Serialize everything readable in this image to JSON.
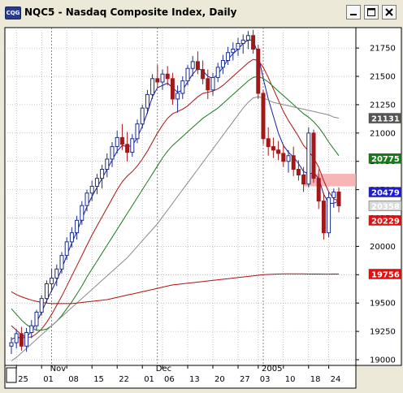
{
  "window": {
    "icon_text": "CQG",
    "title": "NQC5 - Nasdaq Composite Index, Daily"
  },
  "chart_data": {
    "type": "candlestick",
    "symbol": "NQC5",
    "title": "Nasdaq Composite Index, Daily",
    "ylim": [
      18950,
      21930
    ],
    "y_ticks": [
      19000,
      19250,
      19500,
      19750,
      20000,
      20250,
      20500,
      20750,
      21000,
      21250,
      21500,
      21750
    ],
    "x_ticks": [
      {
        "label": "25",
        "bar": 1
      },
      {
        "label": "01",
        "bar": 6
      },
      {
        "label": "08",
        "bar": 11
      },
      {
        "label": "15",
        "bar": 16
      },
      {
        "label": "22",
        "bar": 21
      },
      {
        "label": "01",
        "bar": 26
      },
      {
        "label": "06",
        "bar": 30
      },
      {
        "label": "13",
        "bar": 35
      },
      {
        "label": "20",
        "bar": 40
      },
      {
        "label": "27",
        "bar": 45
      },
      {
        "label": "03",
        "bar": 49
      },
      {
        "label": "10",
        "bar": 54
      },
      {
        "label": "18",
        "bar": 59
      },
      {
        "label": "24",
        "bar": 63
      }
    ],
    "period_labels": [
      {
        "label": "Nov",
        "bar": 8
      },
      {
        "label": "Dec",
        "bar": 29
      },
      {
        "label": "2005",
        "bar": 50
      }
    ],
    "bar_spacing_units": 1,
    "candles": [
      [
        19120,
        19200,
        19050,
        19150
      ],
      [
        19150,
        19270,
        19100,
        19230
      ],
      [
        19230,
        19290,
        19080,
        19120
      ],
      [
        19120,
        19280,
        19070,
        19240
      ],
      [
        19240,
        19350,
        19190,
        19300
      ],
      [
        19300,
        19440,
        19260,
        19420
      ],
      [
        19420,
        19570,
        19390,
        19540
      ],
      [
        19540,
        19700,
        19500,
        19670
      ],
      [
        19670,
        19800,
        19610,
        19720
      ],
      [
        19720,
        19840,
        19650,
        19800
      ],
      [
        19800,
        19950,
        19760,
        19920
      ],
      [
        19920,
        20080,
        19880,
        20040
      ],
      [
        20040,
        20170,
        19990,
        20120
      ],
      [
        20120,
        20270,
        20060,
        20230
      ],
      [
        20230,
        20400,
        20190,
        20360
      ],
      [
        20360,
        20500,
        20310,
        20470
      ],
      [
        20470,
        20580,
        20400,
        20530
      ],
      [
        20530,
        20640,
        20460,
        20600
      ],
      [
        20600,
        20720,
        20510,
        20680
      ],
      [
        20680,
        20820,
        20610,
        20770
      ],
      [
        20770,
        20920,
        20700,
        20880
      ],
      [
        20880,
        21020,
        20820,
        20960
      ],
      [
        20960,
        21080,
        20850,
        20900
      ],
      [
        20900,
        21010,
        20750,
        20830
      ],
      [
        20830,
        20990,
        20790,
        20950
      ],
      [
        20950,
        21120,
        20910,
        21080
      ],
      [
        21080,
        21250,
        21040,
        21220
      ],
      [
        21220,
        21380,
        21170,
        21340
      ],
      [
        21340,
        21520,
        21300,
        21480
      ],
      [
        21480,
        21600,
        21400,
        21450
      ],
      [
        21450,
        21560,
        21380,
        21520
      ],
      [
        21520,
        21590,
        21420,
        21480
      ],
      [
        21480,
        21530,
        21250,
        21300
      ],
      [
        21300,
        21420,
        21180,
        21350
      ],
      [
        21350,
        21500,
        21300,
        21460
      ],
      [
        21460,
        21600,
        21420,
        21570
      ],
      [
        21570,
        21680,
        21500,
        21630
      ],
      [
        21630,
        21720,
        21520,
        21560
      ],
      [
        21560,
        21640,
        21430,
        21480
      ],
      [
        21480,
        21560,
        21300,
        21380
      ],
      [
        21380,
        21530,
        21330,
        21490
      ],
      [
        21490,
        21620,
        21450,
        21580
      ],
      [
        21580,
        21690,
        21520,
        21640
      ],
      [
        21640,
        21760,
        21600,
        21710
      ],
      [
        21710,
        21800,
        21640,
        21740
      ],
      [
        21740,
        21840,
        21680,
        21790
      ],
      [
        21790,
        21870,
        21700,
        21820
      ],
      [
        21820,
        21900,
        21740,
        21860
      ],
      [
        21860,
        21910,
        21700,
        21740
      ],
      [
        21740,
        21780,
        21300,
        21350
      ],
      [
        21350,
        21380,
        20900,
        20950
      ],
      [
        20950,
        21050,
        20800,
        20880
      ],
      [
        20880,
        20960,
        20780,
        20850
      ],
      [
        20850,
        20930,
        20760,
        20820
      ],
      [
        20820,
        20900,
        20700,
        20750
      ],
      [
        20750,
        20850,
        20650,
        20800
      ],
      [
        20800,
        20880,
        20620,
        20680
      ],
      [
        20680,
        20760,
        20580,
        20630
      ],
      [
        20630,
        20700,
        20480,
        20550
      ],
      [
        20550,
        21050,
        20520,
        21000
      ],
      [
        21000,
        21030,
        20560,
        20600
      ],
      [
        20600,
        20680,
        20330,
        20400
      ],
      [
        20400,
        20470,
        20060,
        20120
      ],
      [
        20120,
        20480,
        20080,
        20430
      ],
      [
        20430,
        20510,
        20340,
        20480
      ],
      [
        20480,
        20520,
        20300,
        20358
      ]
    ],
    "series": [
      {
        "type": "moving-average",
        "color": "#1a1aaa",
        "values": [
          19180,
          19200,
          19190,
          19200,
          19250,
          19330,
          19420,
          19520,
          19610,
          19700,
          19800,
          19920,
          20030,
          20130,
          20240,
          20350,
          20440,
          20520,
          20600,
          20680,
          20760,
          20840,
          20890,
          20880,
          20890,
          20960,
          21060,
          21180,
          21320,
          21400,
          21420,
          21440,
          21400,
          21360,
          21380,
          21450,
          21520,
          21570,
          21550,
          21500,
          21480,
          21520,
          21580,
          21650,
          21700,
          21740,
          21790,
          21820,
          21820,
          21690,
          21480,
          21300,
          21150,
          21000,
          20890,
          20830,
          20790,
          20730,
          20660,
          20640,
          20650,
          20600,
          20460,
          20380,
          20380,
          20400
        ]
      },
      {
        "type": "moving-average",
        "color": "#b01010",
        "values": [
          19300,
          19260,
          19220,
          19200,
          19200,
          19230,
          19270,
          19330,
          19400,
          19480,
          19560,
          19650,
          19740,
          19830,
          19920,
          20010,
          20100,
          20180,
          20260,
          20340,
          20420,
          20500,
          20570,
          20620,
          20660,
          20710,
          20770,
          20840,
          20920,
          21000,
          21070,
          21130,
          21170,
          21190,
          21210,
          21240,
          21280,
          21320,
          21350,
          21360,
          21370,
          21390,
          21420,
          21460,
          21500,
          21540,
          21580,
          21620,
          21650,
          21640,
          21580,
          21490,
          21390,
          21290,
          21190,
          21110,
          21040,
          20970,
          20890,
          20840,
          20780,
          20700,
          20580,
          20480,
          20420,
          20400
        ]
      },
      {
        "type": "moving-average",
        "color": "#1a7a1a",
        "values": [
          19450,
          19400,
          19350,
          19310,
          19280,
          19260,
          19260,
          19270,
          19300,
          19340,
          19390,
          19450,
          19510,
          19580,
          19650,
          19730,
          19800,
          19870,
          19940,
          20010,
          20080,
          20150,
          20220,
          20290,
          20360,
          20430,
          20500,
          20570,
          20640,
          20710,
          20780,
          20840,
          20890,
          20930,
          20970,
          21010,
          21050,
          21090,
          21130,
          21160,
          21190,
          21220,
          21260,
          21300,
          21340,
          21380,
          21420,
          21460,
          21490,
          21500,
          21480,
          21450,
          21410,
          21370,
          21330,
          21290,
          21250,
          21210,
          21170,
          21140,
          21100,
          21050,
          20990,
          20920,
          20860,
          20800
        ]
      },
      {
        "type": "moving-average",
        "color": "#8a8a8a",
        "values": [
          18990,
          19020,
          19060,
          19100,
          19140,
          19180,
          19220,
          19260,
          19300,
          19340,
          19380,
          19420,
          19460,
          19500,
          19540,
          19580,
          19620,
          19660,
          19700,
          19740,
          19780,
          19820,
          19860,
          19900,
          19950,
          20000,
          20050,
          20100,
          20150,
          20200,
          20260,
          20320,
          20380,
          20440,
          20500,
          20560,
          20620,
          20680,
          20740,
          20800,
          20860,
          20920,
          20980,
          21040,
          21100,
          21160,
          21220,
          21270,
          21310,
          21320,
          21310,
          21290,
          21270,
          21260,
          21250,
          21240,
          21230,
          21220,
          21210,
          21200,
          21190,
          21180,
          21170,
          21160,
          21140,
          21131
        ]
      },
      {
        "type": "moving-average",
        "color": "#b01010",
        "values": [
          19600,
          19575,
          19555,
          19540,
          19525,
          19515,
          19505,
          19500,
          19495,
          19495,
          19495,
          19495,
          19495,
          19500,
          19505,
          19510,
          19515,
          19520,
          19525,
          19530,
          19540,
          19550,
          19560,
          19570,
          19580,
          19590,
          19600,
          19610,
          19620,
          19630,
          19640,
          19650,
          19660,
          19665,
          19670,
          19675,
          19680,
          19685,
          19690,
          19695,
          19700,
          19705,
          19710,
          19715,
          19720,
          19725,
          19730,
          19735,
          19740,
          19745,
          19750,
          19752,
          19754,
          19756,
          19758,
          19758,
          19758,
          19757,
          19757,
          19756,
          19756,
          19756,
          19755,
          19755,
          19756,
          19756
        ]
      }
    ],
    "zone": {
      "from": 20530,
      "to": 20640,
      "start_bar": 58,
      "color": "#f7a8a8"
    },
    "price_badges": [
      {
        "value": 21131,
        "text": "21131",
        "color": "#555555",
        "text_color": "#ffffff"
      },
      {
        "value": 20775,
        "text": "20775",
        "color": "#1a7a1a",
        "text_color": "#ffffff"
      },
      {
        "value": 20479,
        "text": "20479",
        "color": "#1a1ae0",
        "text_color": "#ffffff"
      },
      {
        "value": 20358,
        "text": "20358",
        "color": "#d9d9d9",
        "text_color": "#000000"
      },
      {
        "value": 20229,
        "text": "20229",
        "color": "#e01010",
        "text_color": "#ffffff"
      },
      {
        "value": 19756,
        "text": "19756",
        "color": "#e01010",
        "text_color": "#ffffff"
      }
    ],
    "grid": true,
    "up_color": "#1a2e8a",
    "down_color": "#a01818"
  }
}
